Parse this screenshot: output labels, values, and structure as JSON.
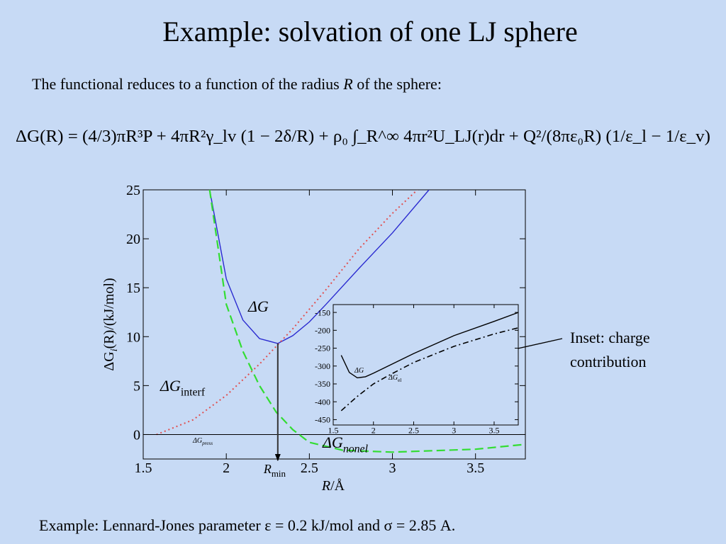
{
  "title": "Example: solvation of one LJ sphere",
  "intro": [
    "The functional reduces to a function of the radius ",
    "R",
    " of the sphere:"
  ],
  "equation": "ΔG(R) = (4/3)πR³P + 4πR²γ_lv (1 − 2δ/R) + ρ₀ ∫_R^∞ 4πr²U_LJ(r)dr + Q²/(8πε₀R) (1/ε_l − 1/ε_v)",
  "annotation": [
    "Inset: charge",
    "contribution"
  ],
  "caption": "Example: Lennard-Jones parameter ε = 0.2 kJ/mol and σ = 2.85 A.",
  "chart_data": [
    {
      "type": "line",
      "xlabel": {
        "text": "R",
        "rest": "/Å"
      },
      "ylabel": {
        "text": "ΔG",
        "sub": "i",
        "rest": "(R)/(kJ/mol)"
      },
      "xlim": [
        1.5,
        3.8
      ],
      "ylim": [
        -2.5,
        25
      ],
      "xticks": [
        1.5,
        2,
        2.5,
        3,
        3.5
      ],
      "yticks": [
        0,
        5,
        10,
        15,
        20,
        25
      ],
      "rmin": {
        "x": 2.31,
        "text": "R",
        "sub": "min"
      },
      "series": [
        {
          "name": "ΔG",
          "color": "#2a2ad0",
          "style": "solid",
          "x": [
            1.9,
            2.0,
            2.1,
            2.2,
            2.31,
            2.4,
            2.5,
            2.6,
            2.8,
            3.0,
            3.22
          ],
          "values": [
            25,
            15.9,
            11.7,
            9.8,
            9.3,
            10.1,
            11.5,
            13.3,
            17,
            20.6,
            25
          ]
        },
        {
          "name": "ΔG",
          "sub": "interf",
          "color": "#e05050",
          "style": "dotted",
          "x": [
            1.58,
            1.8,
            2.0,
            2.2,
            2.4,
            2.6,
            2.8,
            3.0,
            3.15
          ],
          "values": [
            0,
            1.5,
            4.0,
            7.2,
            10.8,
            14.8,
            19.0,
            22.6,
            25
          ]
        },
        {
          "name": "ΔG",
          "sub": "press",
          "color": "#000000",
          "style": "thin",
          "x": [
            1.5,
            3.8
          ],
          "values": [
            0,
            0
          ]
        },
        {
          "name": "ΔG",
          "sub": "nonel",
          "color": "#33dd33",
          "style": "dashed",
          "x": [
            1.9,
            2.0,
            2.1,
            2.2,
            2.3,
            2.4,
            2.5,
            2.7,
            3.0,
            3.5,
            3.8
          ],
          "values": [
            25,
            13.3,
            8.5,
            5.0,
            2.3,
            0.5,
            -0.8,
            -1.6,
            -1.8,
            -1.5,
            -1.0
          ]
        }
      ]
    },
    {
      "type": "line",
      "xlim": [
        1.5,
        3.8
      ],
      "ylim": [
        -465,
        -128
      ],
      "xticks": [
        1.5,
        2,
        2.5,
        3,
        3.5
      ],
      "yticks": [
        -150,
        -200,
        -250,
        -300,
        -350,
        -400,
        -450
      ],
      "series": [
        {
          "name": "ΔG",
          "color": "#000000",
          "style": "solid",
          "x": [
            1.6,
            1.7,
            1.8,
            1.9,
            2.0,
            2.5,
            3.0,
            3.5,
            3.8
          ],
          "values": [
            -270,
            -318,
            -333,
            -330,
            -320,
            -265,
            -215,
            -175,
            -150
          ]
        },
        {
          "name": "ΔG",
          "sub": "el",
          "color": "#000000",
          "style": "dashdot",
          "x": [
            1.6,
            1.8,
            2.0,
            2.2,
            2.5,
            3.0,
            3.5,
            3.8
          ],
          "values": [
            -425,
            -385,
            -350,
            -325,
            -290,
            -245,
            -210,
            -193
          ]
        }
      ]
    }
  ]
}
